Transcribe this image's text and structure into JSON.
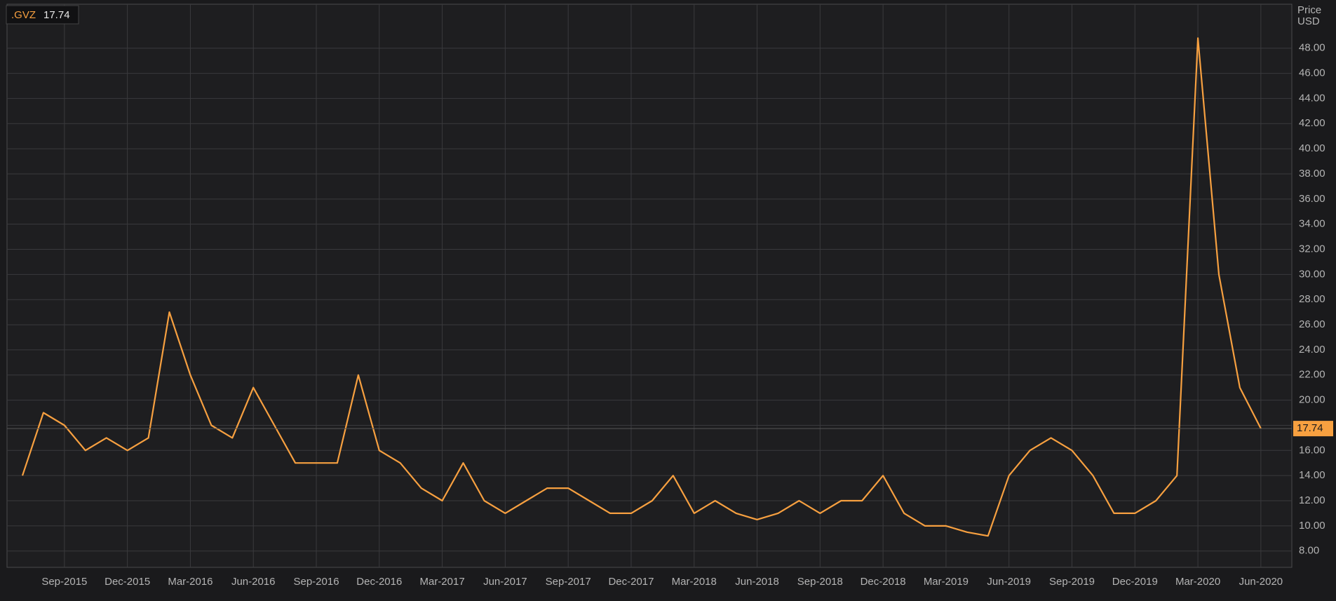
{
  "chart_data": {
    "type": "line",
    "y_label": [
      "Price",
      "USD"
    ],
    "x": [
      "Jul-2015",
      "Aug-2015",
      "Sep-2015",
      "Oct-2015",
      "Nov-2015",
      "Dec-2015",
      "Jan-2016",
      "Feb-2016",
      "Mar-2016",
      "Apr-2016",
      "May-2016",
      "Jun-2016",
      "Jul-2016",
      "Aug-2016",
      "Sep-2016",
      "Oct-2016",
      "Nov-2016",
      "Dec-2016",
      "Jan-2017",
      "Feb-2017",
      "Mar-2017",
      "Apr-2017",
      "May-2017",
      "Jun-2017",
      "Jul-2017",
      "Aug-2017",
      "Sep-2017",
      "Oct-2017",
      "Nov-2017",
      "Dec-2017",
      "Jan-2018",
      "Feb-2018",
      "Mar-2018",
      "Apr-2018",
      "May-2018",
      "Jun-2018",
      "Jul-2018",
      "Aug-2018",
      "Sep-2018",
      "Oct-2018",
      "Nov-2018",
      "Dec-2018",
      "Jan-2019",
      "Feb-2019",
      "Mar-2019",
      "Apr-2019",
      "May-2019",
      "Jun-2019",
      "Jul-2019",
      "Aug-2019",
      "Sep-2019",
      "Oct-2019",
      "Nov-2019",
      "Dec-2019",
      "Jan-2020",
      "Feb-2020",
      "Mar-2020",
      "Apr-2020",
      "May-2020",
      "Jun-2020"
    ],
    "series": [
      {
        "name": ".GVZ",
        "color": "#f7a040",
        "values": [
          14,
          19,
          18,
          16,
          17,
          16,
          17,
          27,
          22,
          18,
          17,
          21,
          18,
          15,
          15,
          15,
          22,
          16,
          15,
          13,
          12,
          15,
          12,
          11,
          12,
          13,
          13,
          12,
          11,
          11,
          12,
          14,
          11,
          12,
          11,
          10.5,
          11,
          12,
          11,
          12,
          12,
          14,
          11,
          10,
          10,
          9.5,
          9.2,
          14,
          16,
          17,
          16,
          14,
          11,
          11,
          12,
          14,
          48.8,
          30,
          21,
          17.74
        ]
      }
    ],
    "xticks": [
      "Sep-2015",
      "Dec-2015",
      "Mar-2016",
      "Jun-2016",
      "Sep-2016",
      "Dec-2016",
      "Mar-2017",
      "Jun-2017",
      "Sep-2017",
      "Dec-2017",
      "Mar-2018",
      "Jun-2018",
      "Sep-2018",
      "Dec-2018",
      "Mar-2019",
      "Jun-2019",
      "Sep-2019",
      "Dec-2019",
      "Mar-2020",
      "Jun-2020"
    ],
    "ylim": [
      6.7,
      51.5
    ],
    "yticks": [
      {
        "value": 8,
        "label": "8.00"
      },
      {
        "value": 10,
        "label": "10.00"
      },
      {
        "value": 12,
        "label": "12.00"
      },
      {
        "value": 14,
        "label": "14.00"
      },
      {
        "value": 16,
        "label": "16.00"
      },
      {
        "value": 18,
        "label": "18.00"
      },
      {
        "value": 20,
        "label": "20.00"
      },
      {
        "value": 22,
        "label": "22.00"
      },
      {
        "value": 24,
        "label": "24.00"
      },
      {
        "value": 26,
        "label": "26.00"
      },
      {
        "value": 28,
        "label": "28.00"
      },
      {
        "value": 30,
        "label": "30.00"
      },
      {
        "value": 32,
        "label": "32.00"
      },
      {
        "value": 34,
        "label": "34.00"
      },
      {
        "value": 36,
        "label": "36.00"
      },
      {
        "value": 38,
        "label": "38.00"
      },
      {
        "value": 40,
        "label": "40.00"
      },
      {
        "value": 42,
        "label": "42.00"
      },
      {
        "value": 44,
        "label": "44.00"
      },
      {
        "value": 46,
        "label": "46.00"
      },
      {
        "value": 48,
        "label": "48.00"
      }
    ],
    "grid": true
  }
}
